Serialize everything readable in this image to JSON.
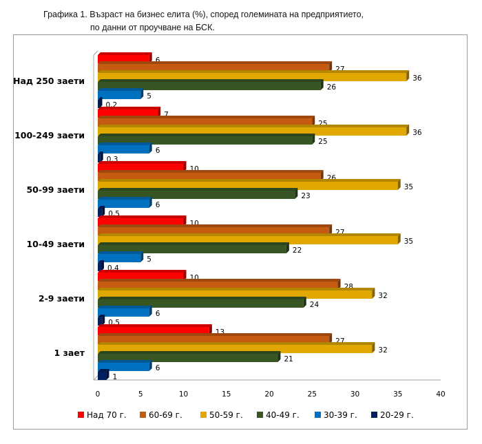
{
  "title": {
    "line1": "Графика 1. Възраст на бизнес елита (%), според големината на предприятието,",
    "line2": "по данни от проучване на БСК."
  },
  "chart_data": {
    "type": "bar",
    "orientation": "horizontal",
    "style": "3d",
    "categories": [
      "Над 250 заети",
      "100-249 заети",
      "50-99 заети",
      "10-49 заети",
      "2-9 заети",
      "1 зает"
    ],
    "series": [
      {
        "name": "Над 70 г.",
        "color": "#ff0000",
        "values": [
          6,
          7,
          10,
          10,
          10,
          13
        ],
        "labels": [
          "6",
          "7",
          "10",
          "10",
          "10",
          "13"
        ]
      },
      {
        "name": "60-69 г.",
        "color": "#c55a11",
        "values": [
          27,
          25,
          26,
          27,
          28,
          27
        ],
        "labels": [
          "27",
          "25",
          "26",
          "27",
          "28",
          "27"
        ]
      },
      {
        "name": "50-59 г.",
        "color": "#e0a800",
        "values": [
          36,
          36,
          35,
          35,
          32,
          32
        ],
        "labels": [
          "36",
          "36",
          "35",
          "35",
          "32",
          "32"
        ]
      },
      {
        "name": "40-49 г.",
        "color": "#375623",
        "values": [
          26,
          25,
          23,
          22,
          24,
          21
        ],
        "labels": [
          "26",
          "25",
          "23",
          "22",
          "24",
          "21"
        ]
      },
      {
        "name": "30-39 г.",
        "color": "#0070c0",
        "values": [
          5,
          6,
          6,
          5,
          6,
          6
        ],
        "labels": [
          "5",
          "6",
          "6",
          "5",
          "6",
          "6"
        ]
      },
      {
        "name": "20-29 г.",
        "color": "#002060",
        "values": [
          0.2,
          0.3,
          0.5,
          0.4,
          0.5,
          1
        ],
        "labels": [
          "0,2",
          "0,3",
          "0,5",
          "0,4",
          "0,5",
          "1"
        ]
      }
    ],
    "xlim": [
      0,
      40
    ],
    "xticks": [
      "0",
      "5",
      "10",
      "15",
      "20",
      "25",
      "30",
      "35",
      "40"
    ],
    "grid": false,
    "legend": "bottom"
  }
}
